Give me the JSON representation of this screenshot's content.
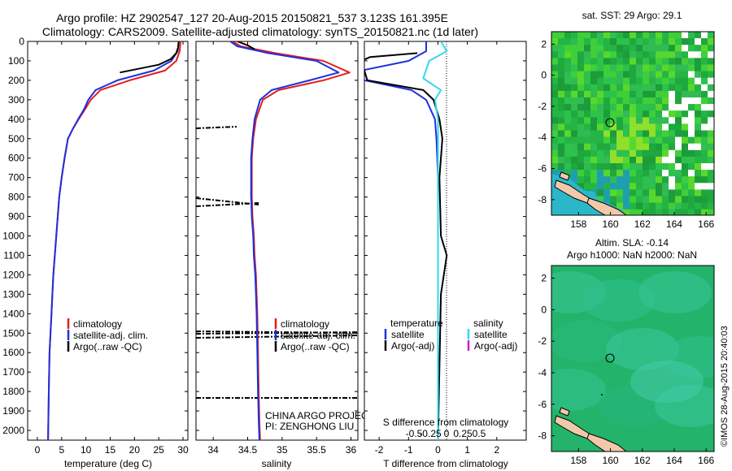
{
  "header": {
    "line1": "Argo profile: HZ 2902547_127 20-Aug-2015 20150821_537 3.123S 161.395E",
    "line2": "Climatology: CARS2009. Satellite-adjusted climatology: synTS_20150821.nc (1d later)"
  },
  "credit": "©IMOS 28-Aug-2015 20:40:03",
  "colors": {
    "climatology": "#e0201b",
    "satellite": "#1f2fe0",
    "argo": "#000000",
    "satellite_salinity": "#35d6f0",
    "argo_adj_salinity": "#d020c8",
    "map_water": "#22b24a",
    "map_land": "#f2c9a8",
    "map_shallow": "#2cb7c9",
    "map_cloud": "#ffffff"
  },
  "panels": {
    "temperature": {
      "xlabel": "temperature (deg C)",
      "xticks": [
        "0",
        "5",
        "10",
        "15",
        "20",
        "25",
        "30"
      ],
      "legend": [
        "climatology",
        "satellite-adj. clim.",
        "Argo(..raw -QC)"
      ]
    },
    "salinity": {
      "xlabel": "salinity",
      "xticks": [
        "34",
        "34.5",
        "35",
        "35.5",
        "36"
      ],
      "legend": [
        "climatology",
        "satellite-adj. clim.",
        "Argo(..raw -QC)"
      ],
      "project": "CHINA ARGO PROJECT",
      "pi": "PI: ZENGHONG LIU"
    },
    "difference": {
      "xlabel": "T difference from climatology",
      "xticks": [
        "-2",
        "-1",
        "0",
        "1",
        "2"
      ],
      "s_label": "S difference from climatology",
      "s_ticks": [
        "-0.5",
        "-0.25",
        "0",
        "0.25",
        "0.5"
      ],
      "legend_temperature": {
        "title": "temperature",
        "items": [
          "satellite",
          "Argo(-adj)"
        ]
      },
      "legend_salinity": {
        "title": "salinity",
        "items": [
          "satellite",
          "Argo(-adj)"
        ]
      }
    }
  },
  "maps": {
    "sst": {
      "title": "sat. SST: 29 Argo: 29.1",
      "xticks": [
        "158",
        "160",
        "162",
        "164",
        "166"
      ],
      "yticks": [
        "2",
        "0",
        "-2",
        "-4",
        "-6",
        "-8"
      ]
    },
    "sla": {
      "title1": "Altim. SLA: -0.14",
      "title2": "Argo h1000: NaN h2000: NaN",
      "xticks": [
        "158",
        "160",
        "162",
        "164",
        "166"
      ],
      "yticks": [
        "2",
        "0",
        "-2",
        "-4",
        "-6",
        "-8"
      ]
    },
    "argo_position": {
      "lon": 161.395,
      "lat": -3.123
    }
  },
  "chart_data": [
    {
      "type": "line",
      "panel": "temperature",
      "xlabel": "temperature (deg C)",
      "ylabel": "",
      "xlim": [
        -2,
        31
      ],
      "ylim": [
        2050,
        0
      ],
      "y_ticks": [
        0,
        100,
        200,
        300,
        400,
        500,
        600,
        700,
        800,
        900,
        1000,
        1100,
        1200,
        1300,
        1400,
        1500,
        1600,
        1700,
        1800,
        1900,
        2000
      ],
      "series": [
        {
          "name": "climatology",
          "x": [
            29.5,
            29.3,
            28.6,
            26.3,
            19.0,
            13.0,
            11.0,
            9.8,
            8.5,
            7.3,
            6.3,
            5.6,
            5.0,
            4.5,
            4.2,
            3.9,
            3.6,
            3.3,
            3.1,
            2.9,
            2.7,
            2.5,
            2.35,
            2.2
          ],
          "y": [
            0,
            50,
            100,
            150,
            200,
            250,
            300,
            350,
            400,
            450,
            500,
            600,
            700,
            800,
            900,
            1000,
            1100,
            1200,
            1300,
            1400,
            1500,
            1600,
            1800,
            2050
          ]
        },
        {
          "name": "satellite-adj. clim.",
          "x": [
            29.1,
            28.9,
            27.6,
            24.0,
            16.5,
            12.0,
            10.5,
            9.6,
            8.4,
            7.3,
            6.3,
            5.6,
            5.0,
            4.5,
            4.2,
            3.9,
            3.6,
            3.3,
            3.1,
            2.9,
            2.7,
            2.5,
            2.35,
            2.2
          ],
          "y": [
            0,
            50,
            100,
            150,
            200,
            250,
            300,
            350,
            400,
            450,
            500,
            600,
            700,
            800,
            900,
            1000,
            1100,
            1200,
            1300,
            1400,
            1500,
            1600,
            1800,
            2050
          ]
        },
        {
          "name": "Argo(..raw -QC)",
          "x": [
            29.1,
            29.0,
            28.6,
            27.5,
            25.0,
            17.0
          ],
          "y": [
            0,
            30,
            60,
            90,
            120,
            160
          ]
        }
      ]
    },
    {
      "type": "line",
      "panel": "salinity",
      "xlabel": "salinity",
      "ylabel": "",
      "xlim": [
        33.75,
        36.1
      ],
      "ylim": [
        2050,
        0
      ],
      "series": [
        {
          "name": "climatology",
          "x": [
            34.28,
            34.4,
            34.9,
            35.6,
            35.98,
            35.6,
            34.95,
            34.72,
            34.62,
            34.58,
            34.56,
            34.56,
            34.56,
            34.57,
            34.59,
            34.6,
            34.62,
            34.63,
            34.64,
            34.65,
            34.66,
            34.67,
            34.68
          ],
          "y": [
            0,
            25,
            60,
            100,
            160,
            200,
            250,
            300,
            400,
            500,
            600,
            700,
            800,
            900,
            1000,
            1100,
            1200,
            1300,
            1400,
            1600,
            1800,
            1950,
            2050
          ]
        },
        {
          "name": "satellite-adj. clim.",
          "x": [
            34.25,
            34.35,
            34.8,
            35.5,
            35.82,
            35.4,
            34.85,
            34.68,
            34.6,
            34.57,
            34.55,
            34.55,
            34.55,
            34.56,
            34.58,
            34.59,
            34.61,
            34.62,
            34.63,
            34.64,
            34.65,
            34.66,
            34.67
          ],
          "y": [
            0,
            25,
            60,
            100,
            160,
            200,
            250,
            300,
            400,
            500,
            600,
            700,
            800,
            900,
            1000,
            1100,
            1200,
            1300,
            1400,
            1600,
            1800,
            1950,
            2050
          ]
        },
        {
          "name": "Argo(..raw -QC)",
          "x": [
            34.35,
            34.5,
            34.6
          ],
          "y": [
            0,
            20,
            40
          ]
        }
      ]
    },
    {
      "type": "line",
      "panel": "difference",
      "xlabel": "T difference from climatology",
      "ylabel": "",
      "xlim": [
        -2.5,
        3
      ],
      "ylim": [
        2050,
        0
      ],
      "series": [
        {
          "name": "temperature satellite",
          "x": [
            -0.4,
            -0.4,
            -1.0,
            -2.6,
            -2.5,
            -0.9,
            -0.4,
            -0.25,
            -0.1,
            -0.05,
            0,
            0,
            0
          ],
          "y": [
            0,
            50,
            100,
            150,
            200,
            250,
            300,
            350,
            400,
            500,
            700,
            1000,
            2050
          ]
        },
        {
          "name": "temperature Argo(-adj)",
          "x": [
            -0.7,
            -2.3,
            -2.6,
            -2.4,
            -0.5,
            -0.15,
            0.05,
            0.15,
            0.05,
            0.1,
            0.3,
            0.1,
            0
          ],
          "y": [
            60,
            80,
            100,
            200,
            250,
            300,
            400,
            500,
            700,
            1000,
            1100,
            1300,
            2050
          ]
        },
        {
          "name": "salinity satellite",
          "x": [
            0.1,
            0.3,
            -0.3,
            -0.5,
            0.1,
            -0.1,
            0,
            0,
            0
          ],
          "y": [
            0,
            50,
            100,
            190,
            250,
            300,
            400,
            1000,
            2050
          ]
        }
      ]
    }
  ]
}
